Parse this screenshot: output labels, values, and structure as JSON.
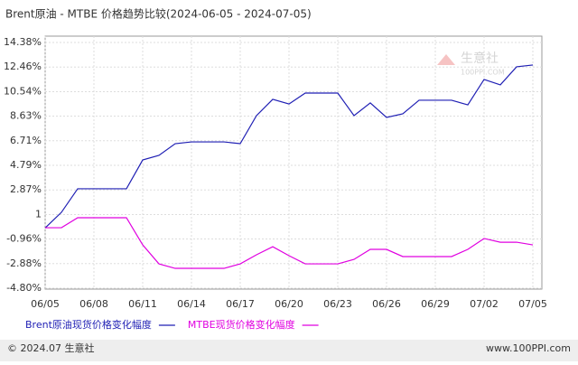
{
  "chart_data": {
    "type": "line",
    "title": "Brent原油 - MTBE 价格趋势比较(2024-06-05 - 2024-07-05)",
    "categories": [
      "06/05",
      null,
      null,
      "06/08",
      null,
      null,
      "06/11",
      null,
      null,
      "06/14",
      null,
      null,
      "06/17",
      null,
      null,
      "06/20",
      null,
      null,
      "06/23",
      null,
      null,
      "06/26",
      null,
      null,
      "06/29",
      null,
      null,
      "07/02",
      null,
      null,
      "07/05"
    ],
    "series": [
      {
        "name": "Brent原油现货价格变化幅度",
        "color": "#1f1fb4",
        "values": [
          -0.1,
          1.12,
          2.96,
          2.96,
          2.96,
          2.96,
          5.21,
          5.57,
          6.48,
          6.62,
          6.62,
          6.62,
          6.48,
          8.67,
          9.94,
          9.58,
          10.43,
          10.43,
          10.43,
          8.67,
          9.66,
          8.53,
          8.81,
          9.87,
          9.87,
          9.87,
          9.51,
          11.49,
          11.07,
          12.48,
          12.62
        ]
      },
      {
        "name": "MTBE现货价格变化幅度",
        "color": "#e000e0",
        "values": [
          -0.08,
          -0.08,
          0.7,
          0.7,
          0.7,
          0.7,
          -1.42,
          -2.9,
          -3.25,
          -3.25,
          -3.25,
          -3.25,
          -2.9,
          -2.19,
          -1.56,
          -2.26,
          -2.9,
          -2.9,
          -2.9,
          -2.55,
          -1.77,
          -1.77,
          -2.33,
          -2.33,
          -2.33,
          -2.33,
          -1.77,
          -0.92,
          -1.21,
          -1.21,
          -1.42
        ]
      }
    ],
    "ylim": [
      -4.8,
      14.38
    ],
    "yticks": [
      {
        "value": -4.8,
        "label": "-4.80%"
      },
      {
        "value": -2.88,
        "label": "-2.88%"
      },
      {
        "value": -0.96,
        "label": "-0.96%"
      },
      {
        "value": 0.95,
        "label": "1"
      },
      {
        "value": 2.87,
        "label": "2.87%"
      },
      {
        "value": 4.79,
        "label": "4.79%"
      },
      {
        "value": 6.71,
        "label": "6.71%"
      },
      {
        "value": 8.63,
        "label": "8.63%"
      },
      {
        "value": 10.54,
        "label": "10.54%"
      },
      {
        "value": 12.46,
        "label": "12.46%"
      },
      {
        "value": 14.38,
        "label": "14.38%"
      }
    ],
    "grid": true,
    "watermark": [
      "生意社",
      "100PPI.COM"
    ],
    "footer": {
      "left": "© 2024.07 生意社",
      "right": "www.100PPI.com"
    }
  }
}
